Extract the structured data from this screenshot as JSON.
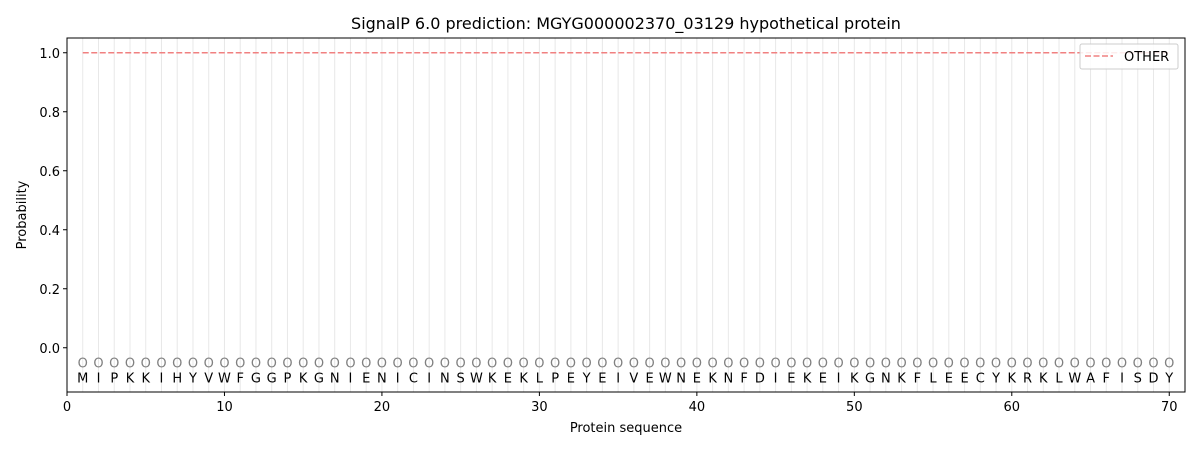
{
  "chart_data": {
    "type": "line",
    "title": "SignalP 6.0 prediction: MGYG000002370_03129 hypothetical protein",
    "xlabel": "Protein sequence",
    "ylabel": "Probability",
    "xlim": [
      0,
      71
    ],
    "ylim": [
      -0.15,
      1.05
    ],
    "xticks": [
      0,
      10,
      20,
      30,
      40,
      50,
      60,
      70
    ],
    "yticks": [
      0.0,
      0.2,
      0.4,
      0.6,
      0.8,
      1.0
    ],
    "ytick_labels": [
      "0.0",
      "0.2",
      "0.4",
      "0.6",
      "0.8",
      "1.0"
    ],
    "grid": "vertical lines at each residue",
    "legend_position": "top-right",
    "series": [
      {
        "name": "OTHER",
        "color": "#f08080",
        "style": "dashed",
        "x_start": 1,
        "x_end": 70,
        "value": 1.0
      }
    ],
    "sequence": [
      "M",
      "I",
      "P",
      "K",
      "K",
      "I",
      "H",
      "Y",
      "V",
      "W",
      "F",
      "G",
      "G",
      "P",
      "K",
      "G",
      "N",
      "I",
      "E",
      "N",
      "I",
      "C",
      "I",
      "N",
      "S",
      "W",
      "K",
      "E",
      "K",
      "L",
      "P",
      "E",
      "Y",
      "E",
      "I",
      "V",
      "E",
      "W",
      "N",
      "E",
      "K",
      "N",
      "F",
      "D",
      "I",
      "E",
      "K",
      "E",
      "I",
      "K",
      "G",
      "N",
      "K",
      "F",
      "L",
      "E",
      "E",
      "C",
      "Y",
      "K",
      "R",
      "K",
      "L",
      "W",
      "A",
      "F",
      "I",
      "S",
      "D",
      "Y"
    ],
    "predicted_label": "O",
    "label_color": "#808080"
  }
}
